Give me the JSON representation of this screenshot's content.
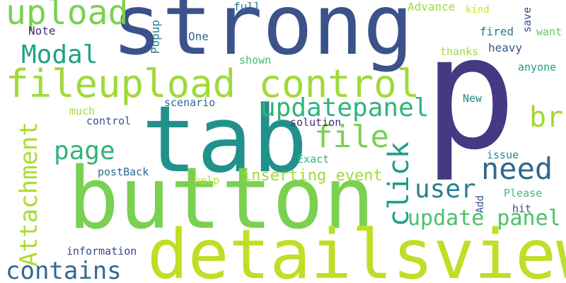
{
  "words": [
    {
      "text": "strong",
      "color": "#3b528b"
    },
    {
      "text": "p",
      "color": "#443983"
    },
    {
      "text": "tab",
      "color": "#21918c"
    },
    {
      "text": "button",
      "color": "#7ad151"
    },
    {
      "text": "detailsview",
      "color": "#bddf26"
    },
    {
      "text": "fileupload control",
      "color": "#a0da39"
    },
    {
      "text": "upload",
      "color": "#7ad151"
    },
    {
      "text": "Modal",
      "color": "#1fa187"
    },
    {
      "text": "updatepanel",
      "color": "#2fb47c"
    },
    {
      "text": "file",
      "color": "#7ad151"
    },
    {
      "text": "need",
      "color": "#31688e"
    },
    {
      "text": "br",
      "color": "#a0da39"
    },
    {
      "text": "page",
      "color": "#2fb47c"
    },
    {
      "text": "click",
      "color": "#1f9e89"
    },
    {
      "text": "user",
      "color": "#26828e"
    },
    {
      "text": "update panel",
      "color": "#4ac16d"
    },
    {
      "text": "contains",
      "color": "#31688e"
    },
    {
      "text": "Attachment",
      "color": "#addc30"
    },
    {
      "text": "inserting event",
      "color": "#a0da39"
    },
    {
      "text": "Note",
      "color": "#472d7b"
    },
    {
      "text": "One",
      "color": "#31688e"
    },
    {
      "text": "Popup",
      "color": "#26828e"
    },
    {
      "text": "full",
      "color": "#2a788e"
    },
    {
      "text": "Advance",
      "color": "#a0da39"
    },
    {
      "text": "kind",
      "color": "#d2e21b"
    },
    {
      "text": "save",
      "color": "#3e4989"
    },
    {
      "text": "want",
      "color": "#5ec962"
    },
    {
      "text": "fired",
      "color": "#2a788e"
    },
    {
      "text": "thanks",
      "color": "#a0da39"
    },
    {
      "text": "heavy",
      "color": "#39558c"
    },
    {
      "text": "anyone",
      "color": "#1f9e89"
    },
    {
      "text": "shown",
      "color": "#3dbc74"
    },
    {
      "text": "much",
      "color": "#addc30"
    },
    {
      "text": "scenario",
      "color": "#31688e"
    },
    {
      "text": "control",
      "color": "#3b528b"
    },
    {
      "text": "solution",
      "color": "#472d7b"
    },
    {
      "text": "New",
      "color": "#23888e"
    },
    {
      "text": "Exact",
      "color": "#2fb47c"
    },
    {
      "text": "postBack",
      "color": "#31688e"
    },
    {
      "text": "help",
      "color": "#bddf26"
    },
    {
      "text": "issue",
      "color": "#23888e"
    },
    {
      "text": "Add",
      "color": "#3b528b"
    },
    {
      "text": "Please",
      "color": "#3dbc74"
    },
    {
      "text": "hit",
      "color": "#3e4989"
    },
    {
      "text": "information",
      "color": "#3e4989"
    }
  ]
}
